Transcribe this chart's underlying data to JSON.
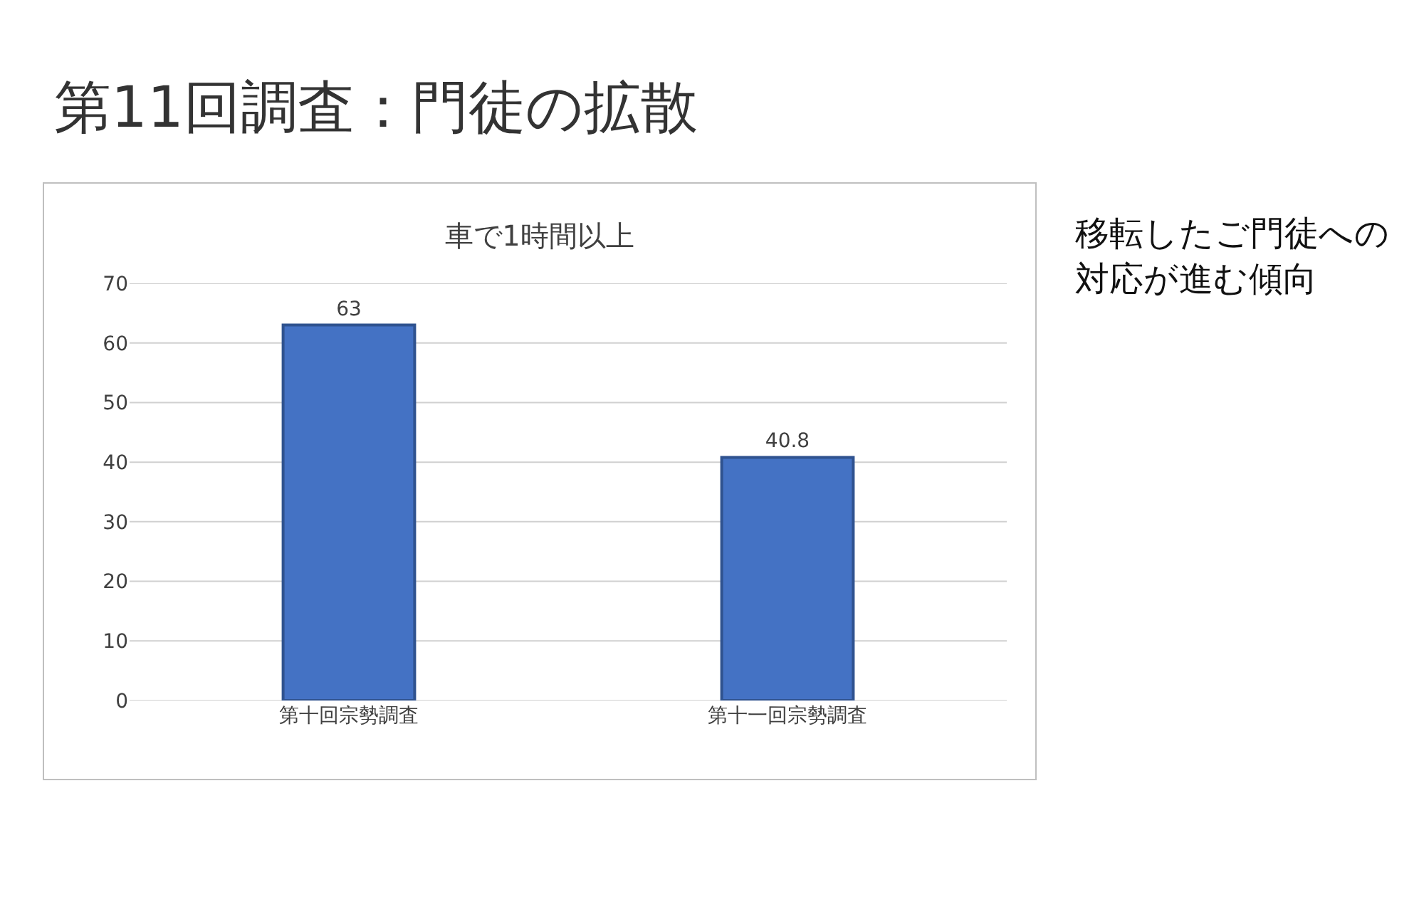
{
  "chart_data": {
    "type": "bar",
    "title": "第11回調査：門徒の拡散",
    "subtitle": "車で1時間以上",
    "annotations": [
      "移転したご門徒への対応が進む傾向"
    ],
    "categories": [
      "第十回宗勢調査",
      "第十一回宗勢調査"
    ],
    "values": [
      63,
      40.8
    ],
    "color": "#4472c4",
    "ylim": [
      0,
      70
    ],
    "yticks": [
      0,
      10,
      20,
      30,
      40,
      50,
      60,
      70
    ],
    "grid": "y",
    "data_labels": true
  }
}
